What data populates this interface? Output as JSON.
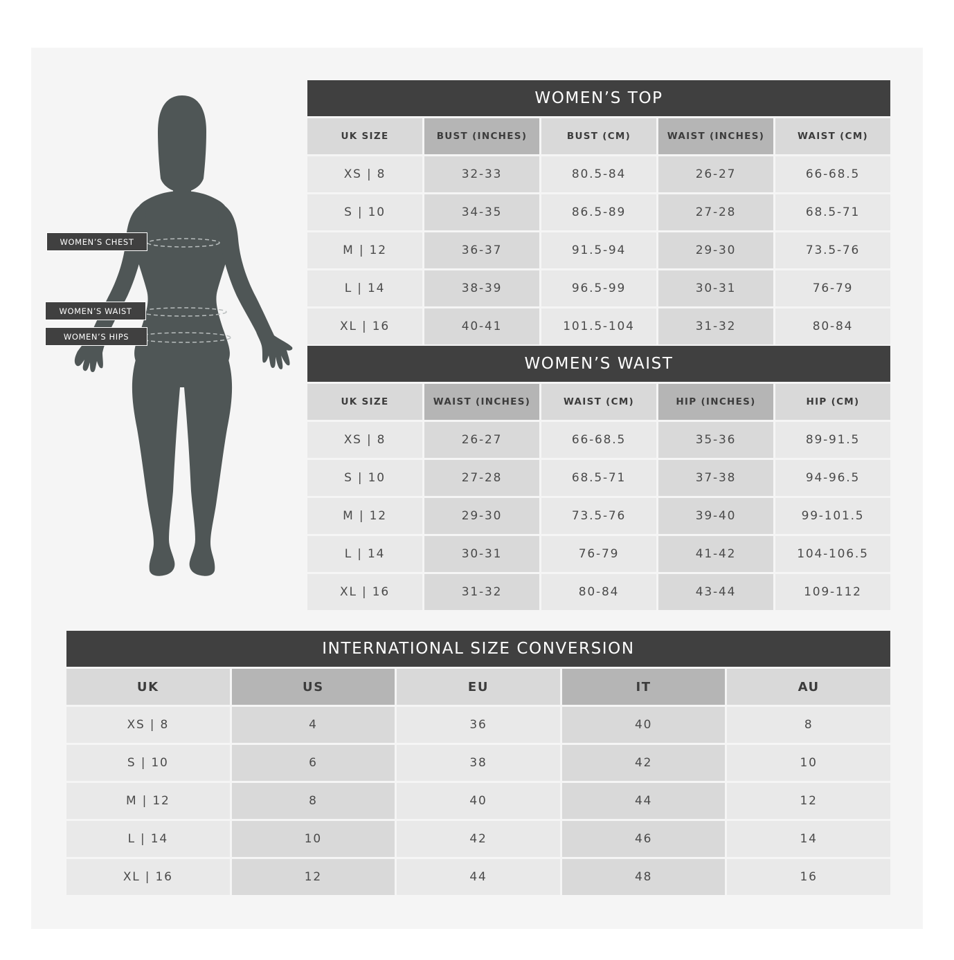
{
  "figure": {
    "labels": {
      "chest": "WOMEN’S CHEST",
      "waist": "WOMEN’S WAIST",
      "hips": "WOMEN’S HIPS"
    },
    "color": "#4f5656"
  },
  "womens_top": {
    "title": "WOMEN’S TOP",
    "headers": [
      "UK SIZE",
      "BUST (INCHES)",
      "BUST (CM)",
      "WAIST (INCHES)",
      "WAIST (CM)"
    ],
    "rows": [
      [
        "XS | 8",
        "32-33",
        "80.5-84",
        "26-27",
        "66-68.5"
      ],
      [
        "S | 10",
        "34-35",
        "86.5-89",
        "27-28",
        "68.5-71"
      ],
      [
        "M | 12",
        "36-37",
        "91.5-94",
        "29-30",
        "73.5-76"
      ],
      [
        "L | 14",
        "38-39",
        "96.5-99",
        "30-31",
        "76-79"
      ],
      [
        "XL | 16",
        "40-41",
        "101.5-104",
        "31-32",
        "80-84"
      ]
    ]
  },
  "womens_waist": {
    "title": "WOMEN’S WAIST",
    "headers": [
      "UK SIZE",
      "WAIST (INCHES)",
      "WAIST (CM)",
      "HIP (INCHES)",
      "HIP (CM)"
    ],
    "rows": [
      [
        "XS | 8",
        "26-27",
        "66-68.5",
        "35-36",
        "89-91.5"
      ],
      [
        "S | 10",
        "27-28",
        "68.5-71",
        "37-38",
        "94-96.5"
      ],
      [
        "M | 12",
        "29-30",
        "73.5-76",
        "39-40",
        "99-101.5"
      ],
      [
        "L | 14",
        "30-31",
        "76-79",
        "41-42",
        "104-106.5"
      ],
      [
        "XL | 16",
        "31-32",
        "80-84",
        "43-44",
        "109-112"
      ]
    ]
  },
  "conversion": {
    "title": "INTERNATIONAL SIZE CONVERSION",
    "headers": [
      "UK",
      "US",
      "EU",
      "IT",
      "AU"
    ],
    "rows": [
      [
        "XS | 8",
        "4",
        "36",
        "40",
        "8"
      ],
      [
        "S | 10",
        "6",
        "38",
        "42",
        "10"
      ],
      [
        "M | 12",
        "8",
        "40",
        "44",
        "12"
      ],
      [
        "L | 14",
        "10",
        "42",
        "46",
        "14"
      ],
      [
        "XL | 16",
        "12",
        "44",
        "48",
        "16"
      ]
    ]
  },
  "colors": {
    "header_bar": "#404040",
    "header_cell_light": "#d9d9d9",
    "header_cell_dark": "#b5b5b5",
    "cell_light": "#e9e9e9",
    "cell_dark": "#d9d9d9",
    "panel_bg": "#f5f5f5"
  }
}
